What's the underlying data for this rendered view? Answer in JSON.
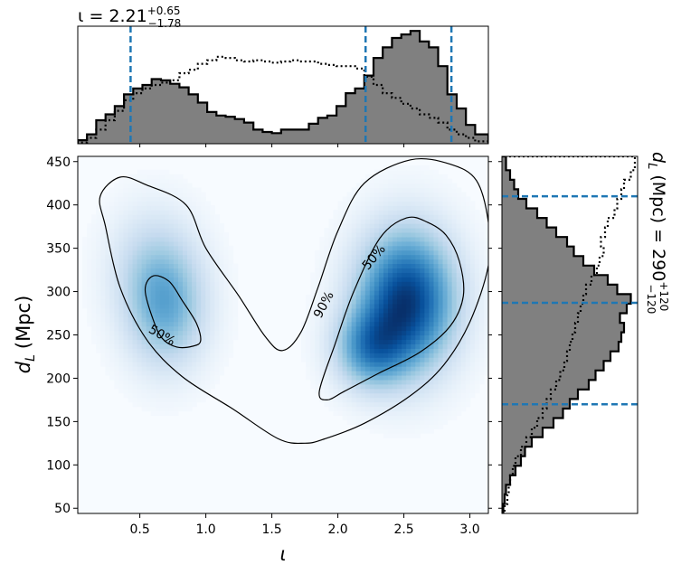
{
  "chart_data": {
    "type": "heatmap",
    "xlabel": "ι",
    "ylabel_main": "d",
    "ylabel_sub": "L",
    "ylabel_unit": "(Mpc)",
    "xlim": [
      0.03,
      3.14
    ],
    "ylim": [
      44,
      456
    ],
    "xticks": [
      0.5,
      1.0,
      1.5,
      2.0,
      2.5,
      3.0
    ],
    "xtick_labels": [
      "0.5",
      "1.0",
      "1.5",
      "2.0",
      "2.5",
      "3.0"
    ],
    "yticks": [
      50,
      100,
      150,
      200,
      250,
      300,
      350,
      400,
      450
    ],
    "ytick_labels": [
      "50",
      "100",
      "150",
      "200",
      "250",
      "300",
      "350",
      "400",
      "450"
    ],
    "colormap": "Blues",
    "density_modes": [
      {
        "x": 2.52,
        "y": 290,
        "sx": 0.24,
        "sy": 52,
        "weight": 1.0
      },
      {
        "x": 2.25,
        "y": 235,
        "sx": 0.18,
        "sy": 30,
        "weight": 0.55
      },
      {
        "x": 0.7,
        "y": 280,
        "sx": 0.2,
        "sy": 45,
        "weight": 0.42
      },
      {
        "x": 0.6,
        "y": 330,
        "sx": 0.22,
        "sy": 45,
        "weight": 0.2
      }
    ],
    "contour_labels": [
      {
        "text": "90%",
        "x": 1.89,
        "y": 285
      },
      {
        "text": "50%",
        "x": 2.27,
        "y": 340
      },
      {
        "text": "50%",
        "x": 0.67,
        "y": 250
      }
    ],
    "contour_90": [
      [
        0.24,
        375
      ],
      [
        0.2,
        410
      ],
      [
        0.35,
        432
      ],
      [
        0.55,
        423
      ],
      [
        0.85,
        400
      ],
      [
        1.0,
        350
      ],
      [
        1.25,
        295
      ],
      [
        1.45,
        248
      ],
      [
        1.58,
        232
      ],
      [
        1.72,
        253
      ],
      [
        1.85,
        305
      ],
      [
        2.0,
        370
      ],
      [
        2.2,
        425
      ],
      [
        2.55,
        452
      ],
      [
        2.85,
        447
      ],
      [
        3.05,
        428
      ],
      [
        3.14,
        380
      ],
      [
        3.14,
        330
      ],
      [
        3.0,
        265
      ],
      [
        2.8,
        215
      ],
      [
        2.55,
        180
      ],
      [
        2.2,
        148
      ],
      [
        1.9,
        130
      ],
      [
        1.75,
        125
      ],
      [
        1.55,
        130
      ],
      [
        1.2,
        165
      ],
      [
        0.82,
        202
      ],
      [
        0.55,
        245
      ],
      [
        0.35,
        305
      ]
    ],
    "contour_50_right": [
      [
        1.86,
        185
      ],
      [
        1.98,
        240
      ],
      [
        2.12,
        300
      ],
      [
        2.32,
        362
      ],
      [
        2.52,
        385
      ],
      [
        2.68,
        380
      ],
      [
        2.82,
        365
      ],
      [
        2.92,
        335
      ],
      [
        2.95,
        295
      ],
      [
        2.85,
        260
      ],
      [
        2.62,
        230
      ],
      [
        2.3,
        205
      ],
      [
        2.05,
        185
      ],
      [
        1.92,
        175
      ]
    ],
    "contour_50_left": [
      [
        0.54,
        302
      ],
      [
        0.6,
        318
      ],
      [
        0.72,
        312
      ],
      [
        0.82,
        290
      ],
      [
        0.93,
        263
      ],
      [
        0.96,
        243
      ],
      [
        0.9,
        237
      ],
      [
        0.78,
        236
      ],
      [
        0.67,
        246
      ],
      [
        0.6,
        268
      ]
    ],
    "top_hist": {
      "title_prefix": "ι = 2.21",
      "title_sup": "+0.65",
      "title_sub": "−1.78",
      "bin_edges": [
        0.03,
        0.1,
        0.17,
        0.24,
        0.31,
        0.38,
        0.45,
        0.52,
        0.59,
        0.66,
        0.73,
        0.8,
        0.87,
        0.94,
        1.01,
        1.08,
        1.15,
        1.22,
        1.29,
        1.36,
        1.43,
        1.5,
        1.57,
        1.64,
        1.71,
        1.78,
        1.85,
        1.92,
        1.99,
        2.06,
        2.13,
        2.2,
        2.27,
        2.34,
        2.41,
        2.48,
        2.55,
        2.62,
        2.69,
        2.76,
        2.83,
        2.9,
        2.97,
        3.04,
        3.14
      ],
      "prior_bin_edges": [
        0.03,
        0.1,
        0.17,
        0.24,
        0.31,
        0.38,
        0.45,
        0.52,
        0.59,
        0.66,
        0.73,
        0.8,
        0.87,
        0.94,
        1.01,
        1.08,
        1.15,
        1.22,
        1.29,
        1.36,
        1.43,
        1.5,
        1.57,
        1.64,
        1.71,
        1.78,
        1.85,
        1.92,
        1.99,
        2.06,
        2.13,
        2.2,
        2.27,
        2.34,
        2.41,
        2.48,
        2.55,
        2.62,
        2.69,
        2.76,
        2.83,
        2.9,
        2.97,
        3.04,
        3.14
      ],
      "counts": [
        0.03,
        0.08,
        0.2,
        0.25,
        0.32,
        0.42,
        0.47,
        0.5,
        0.55,
        0.54,
        0.51,
        0.48,
        0.42,
        0.35,
        0.27,
        0.24,
        0.23,
        0.21,
        0.18,
        0.12,
        0.1,
        0.09,
        0.12,
        0.12,
        0.12,
        0.17,
        0.22,
        0.24,
        0.32,
        0.43,
        0.47,
        0.58,
        0.73,
        0.82,
        0.9,
        0.93,
        0.96,
        0.87,
        0.82,
        0.66,
        0.42,
        0.3,
        0.16,
        0.08
      ],
      "prior_counts": [
        0.01,
        0.05,
        0.12,
        0.2,
        0.28,
        0.37,
        0.43,
        0.47,
        0.5,
        0.52,
        0.54,
        0.6,
        0.63,
        0.68,
        0.71,
        0.74,
        0.73,
        0.71,
        0.7,
        0.71,
        0.7,
        0.69,
        0.7,
        0.71,
        0.7,
        0.7,
        0.68,
        0.67,
        0.66,
        0.66,
        0.64,
        0.57,
        0.5,
        0.43,
        0.39,
        0.34,
        0.3,
        0.25,
        0.22,
        0.18,
        0.12,
        0.08,
        0.05,
        0.02
      ],
      "quantiles": [
        0.43,
        2.21,
        2.86
      ],
      "ymax": 1.0
    },
    "right_hist": {
      "label_main": "d",
      "label_sub": "L",
      "label_rest": " (Mpc) = 290",
      "label_sup": "+120",
      "label_sub2": "−120",
      "bin_edges": [
        44,
        55,
        66,
        77,
        88,
        99,
        110,
        121,
        132,
        143,
        154,
        165,
        176,
        187,
        198,
        209,
        220,
        231,
        242,
        253,
        264,
        275,
        286,
        297,
        308,
        319,
        330,
        341,
        352,
        363,
        374,
        385,
        396,
        407,
        418,
        429,
        440,
        456
      ],
      "counts": [
        0.01,
        0.02,
        0.03,
        0.06,
        0.1,
        0.14,
        0.17,
        0.22,
        0.3,
        0.38,
        0.45,
        0.5,
        0.56,
        0.64,
        0.69,
        0.75,
        0.8,
        0.86,
        0.88,
        0.9,
        0.87,
        0.92,
        0.95,
        0.85,
        0.78,
        0.68,
        0.6,
        0.53,
        0.48,
        0.4,
        0.33,
        0.26,
        0.18,
        0.12,
        0.09,
        0.06,
        0.03
      ],
      "prior_counts": [
        0.02,
        0.04,
        0.05,
        0.06,
        0.08,
        0.1,
        0.14,
        0.18,
        0.22,
        0.26,
        0.3,
        0.33,
        0.36,
        0.4,
        0.43,
        0.46,
        0.48,
        0.5,
        0.52,
        0.54,
        0.56,
        0.58,
        0.6,
        0.62,
        0.66,
        0.7,
        0.72,
        0.75,
        0.73,
        0.76,
        0.78,
        0.83,
        0.85,
        0.88,
        0.9,
        0.95,
        0.98
      ],
      "quantiles": [
        170,
        287,
        410
      ],
      "xmax": 1.0
    }
  }
}
